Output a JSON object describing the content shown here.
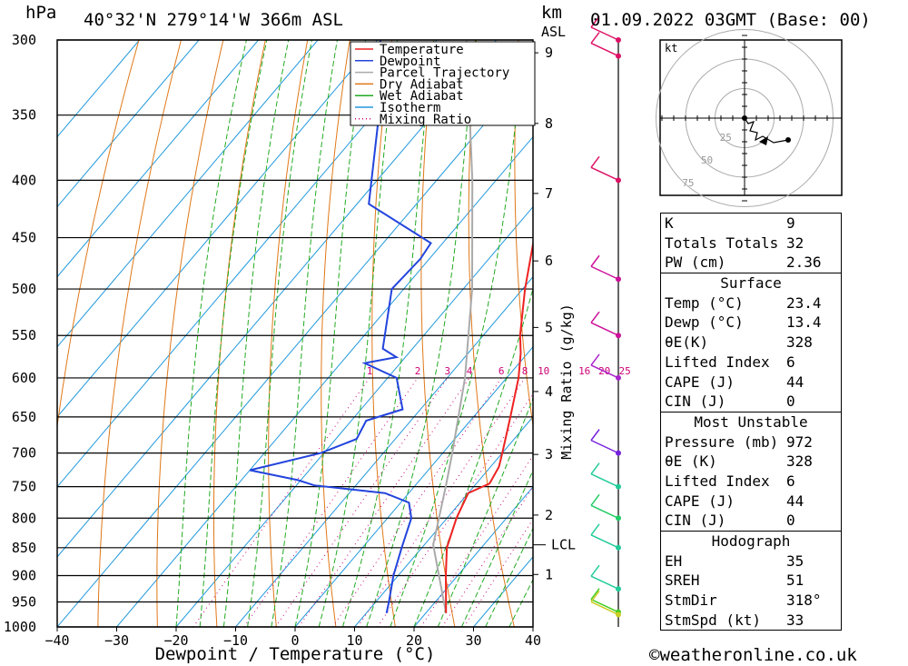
{
  "header": {
    "pressure_unit": "hPa",
    "location": "40°32'N  279°14'W  366m  ASL",
    "height_unit": "km",
    "height_unit2": "ASL",
    "datetime": "01.09.2022  03GMT  (Base: 00)"
  },
  "footer": {
    "copyright": "©weatheronline.co.uk"
  },
  "legend": [
    {
      "label": "Temperature",
      "color": "#ee2222",
      "style": "solid"
    },
    {
      "label": "Dewpoint",
      "color": "#2244dd",
      "style": "solid"
    },
    {
      "label": "Parcel Trajectory",
      "color": "#aaaaaa",
      "style": "solid"
    },
    {
      "label": "Dry Adiabat",
      "color": "#e07818",
      "style": "solid"
    },
    {
      "label": "Wet Adiabat",
      "color": "#22aa22",
      "style": "solid"
    },
    {
      "label": "Isotherm",
      "color": "#2299dd",
      "style": "solid"
    },
    {
      "label": "Mixing Ratio",
      "color": "#cc0077",
      "style": "dotted"
    }
  ],
  "chart_data": {
    "type": "skew-t",
    "xlabel": "Dewpoint / Temperature (°C)",
    "ylabel": "hPa",
    "y2label": "Mixing Ratio (g/kg)",
    "x_ticks": [
      -40,
      -30,
      -20,
      -10,
      0,
      10,
      20,
      30,
      40
    ],
    "pressure_levels": [
      300,
      350,
      400,
      450,
      500,
      550,
      600,
      650,
      700,
      750,
      800,
      850,
      900,
      950,
      1000
    ],
    "height_km_ticks": [
      1,
      2,
      3,
      4,
      5,
      6,
      7,
      8,
      9
    ],
    "lcl_label": "LCL",
    "lcl_pressure": 845,
    "mixing_ratio_labels": [
      "1",
      "2",
      "3",
      "4",
      "6",
      "8",
      "10",
      "16",
      "20",
      "25"
    ],
    "mixing_ratio_values": [
      1,
      2,
      3,
      4,
      6,
      8,
      10,
      16,
      20,
      25
    ],
    "temperature": [
      {
        "p": 972,
        "t": 23.4
      },
      {
        "p": 950,
        "t": 21.8
      },
      {
        "p": 900,
        "t": 18.0
      },
      {
        "p": 850,
        "t": 14.2
      },
      {
        "p": 800,
        "t": 11.6
      },
      {
        "p": 760,
        "t": 10.0
      },
      {
        "p": 745,
        "t": 12.2
      },
      {
        "p": 720,
        "t": 11.4
      },
      {
        "p": 700,
        "t": 10.0
      },
      {
        "p": 650,
        "t": 6.2
      },
      {
        "p": 600,
        "t": 2.0
      },
      {
        "p": 570,
        "t": -1.2
      },
      {
        "p": 550,
        "t": -3.8
      },
      {
        "p": 500,
        "t": -9.6
      },
      {
        "p": 450,
        "t": -15.4
      },
      {
        "p": 400,
        "t": -22.6
      },
      {
        "p": 350,
        "t": -31.5
      },
      {
        "p": 300,
        "t": -41.5
      }
    ],
    "dewpoint": [
      {
        "p": 972,
        "t": 13.4
      },
      {
        "p": 950,
        "t": 12.2
      },
      {
        "p": 900,
        "t": 9.2
      },
      {
        "p": 850,
        "t": 6.6
      },
      {
        "p": 800,
        "t": 4.0
      },
      {
        "p": 775,
        "t": 1.4
      },
      {
        "p": 760,
        "t": -4.0
      },
      {
        "p": 748,
        "t": -17.0
      },
      {
        "p": 740,
        "t": -20.5
      },
      {
        "p": 725,
        "t": -30.0
      },
      {
        "p": 700,
        "t": -20.5
      },
      {
        "p": 680,
        "t": -16.5
      },
      {
        "p": 655,
        "t": -17.5
      },
      {
        "p": 640,
        "t": -13.0
      },
      {
        "p": 600,
        "t": -18.5
      },
      {
        "p": 582,
        "t": -26.0
      },
      {
        "p": 575,
        "t": -21.5
      },
      {
        "p": 565,
        "t": -25.0
      },
      {
        "p": 500,
        "t": -32.0
      },
      {
        "p": 470,
        "t": -31.5
      },
      {
        "p": 455,
        "t": -32.0
      },
      {
        "p": 420,
        "t": -48.0
      },
      {
        "p": 350,
        "t": -59.0
      },
      {
        "p": 300,
        "t": -69.5
      }
    ],
    "parcel": [
      {
        "p": 972,
        "t": 23.4
      },
      {
        "p": 845,
        "t": 11.5
      },
      {
        "p": 750,
        "t": 5.3
      },
      {
        "p": 700,
        "t": 1.6
      },
      {
        "p": 600,
        "t": -7.0
      },
      {
        "p": 500,
        "t": -18.5
      },
      {
        "p": 400,
        "t": -34.0
      },
      {
        "p": 300,
        "t": -55.0
      }
    ],
    "grid_on": true,
    "legend_position": "top-center"
  },
  "hodograph": {
    "unit": "kt",
    "ring_labels": [
      "25",
      "50",
      "75"
    ],
    "points": [
      [
        0,
        0
      ],
      [
        4,
        -6
      ],
      [
        10,
        -4
      ],
      [
        6,
        -14
      ],
      [
        14,
        -16
      ],
      [
        12,
        -24
      ],
      [
        20,
        -20
      ],
      [
        32,
        -27
      ],
      [
        48,
        -24
      ]
    ]
  },
  "indices": [
    {
      "label": "K",
      "value": "9"
    },
    {
      "label": "Totals Totals",
      "value": "32"
    },
    {
      "label": "PW (cm)",
      "value": "2.36"
    }
  ],
  "surface": {
    "title": "Surface",
    "rows": [
      {
        "label": "Temp (°C)",
        "value": "23.4"
      },
      {
        "label": "Dewp (°C)",
        "value": "13.4"
      },
      {
        "label": "θE(K)",
        "value": "328"
      },
      {
        "label": "Lifted Index",
        "value": "6"
      },
      {
        "label": "CAPE (J)",
        "value": "44"
      },
      {
        "label": "CIN (J)",
        "value": "0"
      }
    ]
  },
  "most_unstable": {
    "title": "Most Unstable",
    "rows": [
      {
        "label": "Pressure (mb)",
        "value": "972"
      },
      {
        "label": "θE (K)",
        "value": "328"
      },
      {
        "label": "Lifted Index",
        "value": "6"
      },
      {
        "label": "CAPE (J)",
        "value": "44"
      },
      {
        "label": "CIN (J)",
        "value": "0"
      }
    ]
  },
  "hodograph_box": {
    "title": "Hodograph",
    "rows": [
      {
        "label": "EH",
        "value": "35"
      },
      {
        "label": "SREH",
        "value": "51"
      },
      {
        "label": "StmDir",
        "value": "318°"
      },
      {
        "label": "StmSpd (kt)",
        "value": "33"
      }
    ]
  },
  "wind_barbs": [
    {
      "p": 300,
      "color": "#dd1166"
    },
    {
      "p": 310,
      "color": "#dd1166"
    },
    {
      "p": 400,
      "color": "#dd1166"
    },
    {
      "p": 490,
      "color": "#cc1199"
    },
    {
      "p": 550,
      "color": "#cc1199"
    },
    {
      "p": 600,
      "color": "#aa22cc"
    },
    {
      "p": 700,
      "color": "#7722dd"
    },
    {
      "p": 750,
      "color": "#22cc99"
    },
    {
      "p": 800,
      "color": "#22cc66"
    },
    {
      "p": 850,
      "color": "#22cc99"
    },
    {
      "p": 925,
      "color": "#22cc99"
    },
    {
      "p": 970,
      "color": "#44cc22"
    },
    {
      "p": 975,
      "color": "#cccc22"
    }
  ]
}
